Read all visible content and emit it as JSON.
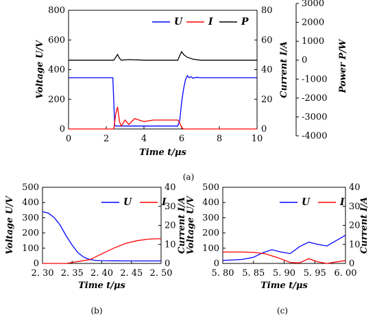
{
  "colors": {
    "U": "#0000ff",
    "I": "#ff0000",
    "P": "#000000"
  },
  "chart_data": [
    {
      "type": "line",
      "caption": "(a)",
      "xlabel": "Time  t/μs",
      "xlim": [
        0,
        10
      ],
      "xticks": [
        "0",
        "2",
        "4",
        "6",
        "8",
        "10"
      ],
      "ylabel_left": "Voltage  U/V",
      "ylim_left": [
        0,
        800
      ],
      "yticks_left": [
        "0",
        "200",
        "400",
        "600",
        "800"
      ],
      "ylabel_mid": "Current  I/A",
      "ylim_mid": [
        0,
        80
      ],
      "yticks_mid": [
        "0",
        "20",
        "40",
        "60",
        "80"
      ],
      "ylabel_right": "Power  P/W",
      "ylim_right": [
        -4000,
        3000
      ],
      "yticks_right": [
        "3000",
        "2000",
        "1000",
        "0",
        "-1000",
        "-2000",
        "-3000",
        "-4000"
      ],
      "legend": [
        "U",
        "I",
        "P"
      ],
      "legend_position": "top-right",
      "series": [
        {
          "name": "U",
          "axis": "left",
          "x": [
            0,
            2.35,
            2.45,
            2.5,
            5.8,
            5.9,
            6.0,
            6.1,
            6.2,
            6.3,
            6.4,
            6.5,
            6.6,
            6.8,
            7.0,
            10
          ],
          "y": [
            345,
            345,
            25,
            20,
            20,
            60,
            180,
            270,
            330,
            360,
            345,
            352,
            342,
            348,
            345,
            345
          ]
        },
        {
          "name": "I",
          "axis": "mid",
          "x": [
            0,
            2.4,
            2.5,
            2.6,
            2.7,
            2.8,
            3.0,
            3.2,
            3.5,
            4.0,
            4.5,
            5.0,
            5.5,
            5.8,
            5.9,
            6.0,
            6.1,
            6.3,
            10
          ],
          "y": [
            0,
            0,
            10,
            15,
            5,
            2,
            6,
            3,
            7,
            5,
            6,
            6,
            6,
            6,
            4,
            1,
            0,
            0,
            0
          ]
        },
        {
          "name": "P",
          "axis": "right",
          "x": [
            0,
            2.4,
            2.5,
            2.6,
            2.7,
            2.8,
            3.2,
            4.0,
            5.8,
            5.9,
            6.0,
            6.1,
            6.3,
            6.6,
            7.0,
            10
          ],
          "y": [
            0,
            0,
            150,
            300,
            100,
            0,
            30,
            0,
            0,
            250,
            450,
            300,
            150,
            50,
            0,
            0
          ]
        }
      ]
    },
    {
      "type": "line",
      "caption": "(b)",
      "xlabel": "Time  t/μs",
      "xlim": [
        2.3,
        2.5
      ],
      "xticks": [
        "2. 30",
        "2. 35",
        "2. 40",
        "2. 45",
        "2. 50"
      ],
      "ylabel_left": "Voltage  U/V",
      "ylim_left": [
        0,
        500
      ],
      "yticks_left": [
        "0",
        "100",
        "200",
        "300",
        "400",
        "500"
      ],
      "ylabel_right": "Current  I/A",
      "ylim_right": [
        0,
        40
      ],
      "yticks_right": [
        "0",
        "10",
        "20",
        "30",
        "40"
      ],
      "legend": [
        "U",
        "I"
      ],
      "legend_position": "top-right",
      "series": [
        {
          "name": "U",
          "axis": "left",
          "x": [
            2.3,
            2.31,
            2.32,
            2.33,
            2.34,
            2.35,
            2.36,
            2.37,
            2.38,
            2.39,
            2.4,
            2.42,
            2.45,
            2.5
          ],
          "y": [
            340,
            330,
            300,
            250,
            180,
            120,
            70,
            40,
            25,
            20,
            18,
            17,
            16,
            16
          ]
        },
        {
          "name": "I",
          "axis": "right",
          "x": [
            2.3,
            2.34,
            2.36,
            2.38,
            2.4,
            2.42,
            2.44,
            2.46,
            2.48,
            2.5
          ],
          "y": [
            0,
            0,
            1,
            2,
            5,
            8,
            10.5,
            12,
            12.8,
            13
          ]
        }
      ]
    },
    {
      "type": "line",
      "caption": "(c)",
      "xlabel": "Time  t/μs",
      "xlim": [
        5.8,
        6.0
      ],
      "xticks": [
        "5. 80",
        "5. 85",
        "5. 90",
        "5. 95",
        "6. 00"
      ],
      "ylabel_left": "Voltage  U/V",
      "ylim_left": [
        0,
        500
      ],
      "yticks_left": [
        "0",
        "100",
        "200",
        "300",
        "400",
        "500"
      ],
      "ylabel_right": "Current  I/A",
      "ylim_right": [
        0,
        40
      ],
      "yticks_right": [
        "0",
        "10",
        "20",
        "30",
        "40"
      ],
      "legend": [
        "U",
        "I"
      ],
      "legend_position": "top-right",
      "series": [
        {
          "name": "U",
          "axis": "left",
          "x": [
            5.8,
            5.83,
            5.85,
            5.865,
            5.88,
            5.895,
            5.91,
            5.925,
            5.94,
            5.955,
            5.97,
            5.985,
            6.0
          ],
          "y": [
            20,
            25,
            40,
            70,
            90,
            75,
            65,
            110,
            140,
            125,
            115,
            150,
            185
          ]
        },
        {
          "name": "I",
          "axis": "right",
          "x": [
            5.8,
            5.83,
            5.85,
            5.87,
            5.89,
            5.91,
            5.925,
            5.94,
            5.955,
            5.97,
            5.985,
            6.0
          ],
          "y": [
            6,
            6,
            5.8,
            5,
            3,
            0.5,
            0.3,
            2.5,
            0.8,
            0,
            0.8,
            1.5
          ]
        }
      ]
    }
  ]
}
